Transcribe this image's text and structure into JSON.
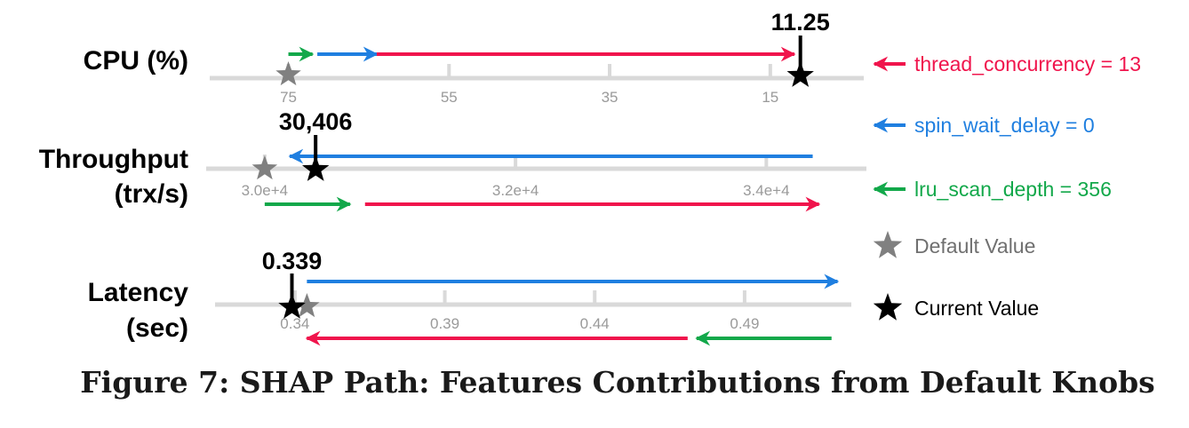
{
  "caption": "Figure 7: SHAP Path: Features Contributions from Default Knobs",
  "colors": {
    "thread_concurrency": "#f0144c",
    "spin_wait_delay": "#1f7fe0",
    "lru_scan_depth": "#12a84a",
    "default_star": "#808080",
    "current_star": "#000000",
    "axis": "#d9d9d9",
    "tick_label": "#9a9a9a"
  },
  "legend": [
    {
      "label": "thread_concurrency = 13",
      "color": "#f0144c",
      "marker": "arrow-left-icon"
    },
    {
      "label": "spin_wait_delay = 0",
      "color": "#1f7fe0",
      "marker": "arrow-left-icon"
    },
    {
      "label": "lru_scan_depth = 356",
      "color": "#12a84a",
      "marker": "arrow-left-icon"
    },
    {
      "label": "Default Value",
      "color": "#808080",
      "marker": "star-icon"
    },
    {
      "label": "Current Value",
      "color": "#000000",
      "marker": "star-icon"
    }
  ],
  "chart_data": [
    {
      "type": "shap-path",
      "title_lines": [
        "CPU (%)"
      ],
      "xlim": [
        78.6,
        6.9
      ],
      "ticks": [
        75,
        55,
        35,
        15
      ],
      "tick_labels": [
        "75",
        "55",
        "35",
        "15"
      ],
      "default_value": 75,
      "current_value": 11.25,
      "current_label": "11.25",
      "contributions": [
        {
          "feature": "lru_scan_depth",
          "from": 75,
          "to": 72
        },
        {
          "feature": "spin_wait_delay",
          "from": 71.4,
          "to": 64
        },
        {
          "feature": "thread_concurrency",
          "from": 64,
          "to": 12
        }
      ]
    },
    {
      "type": "shap-path",
      "title_lines": [
        "Throughput",
        "(trx/s)"
      ],
      "xlim": [
        29930,
        34600
      ],
      "ticks": [
        30000,
        32000,
        34000
      ],
      "tick_labels": [
        "3.0e+4",
        "3.2e+4",
        "3.4e+4"
      ],
      "default_value": 30000,
      "current_value": 30406,
      "current_label": "30,406",
      "contributions": [
        {
          "feature": "lru_scan_depth",
          "from": 30000,
          "to": 30680
        },
        {
          "feature": "thread_concurrency",
          "from": 30800,
          "to": 34420
        },
        {
          "feature": "spin_wait_delay",
          "from": 34370,
          "to": 30200
        }
      ]
    },
    {
      "type": "shap-path",
      "title_lines": [
        "Latency",
        "(sec)"
      ],
      "xlim": [
        0.327,
        0.525
      ],
      "ticks": [
        0.34,
        0.39,
        0.44,
        0.49
      ],
      "tick_labels": [
        "0.34",
        "0.39",
        "0.44",
        "0.49"
      ],
      "default_value": 0.344,
      "current_value": 0.339,
      "current_label": "0.339",
      "contributions": [
        {
          "feature": "spin_wait_delay",
          "from": 0.344,
          "to": 0.521
        },
        {
          "feature": "lru_scan_depth",
          "from": 0.519,
          "to": 0.474
        },
        {
          "feature": "thread_concurrency",
          "from": 0.471,
          "to": 0.344
        }
      ]
    }
  ]
}
